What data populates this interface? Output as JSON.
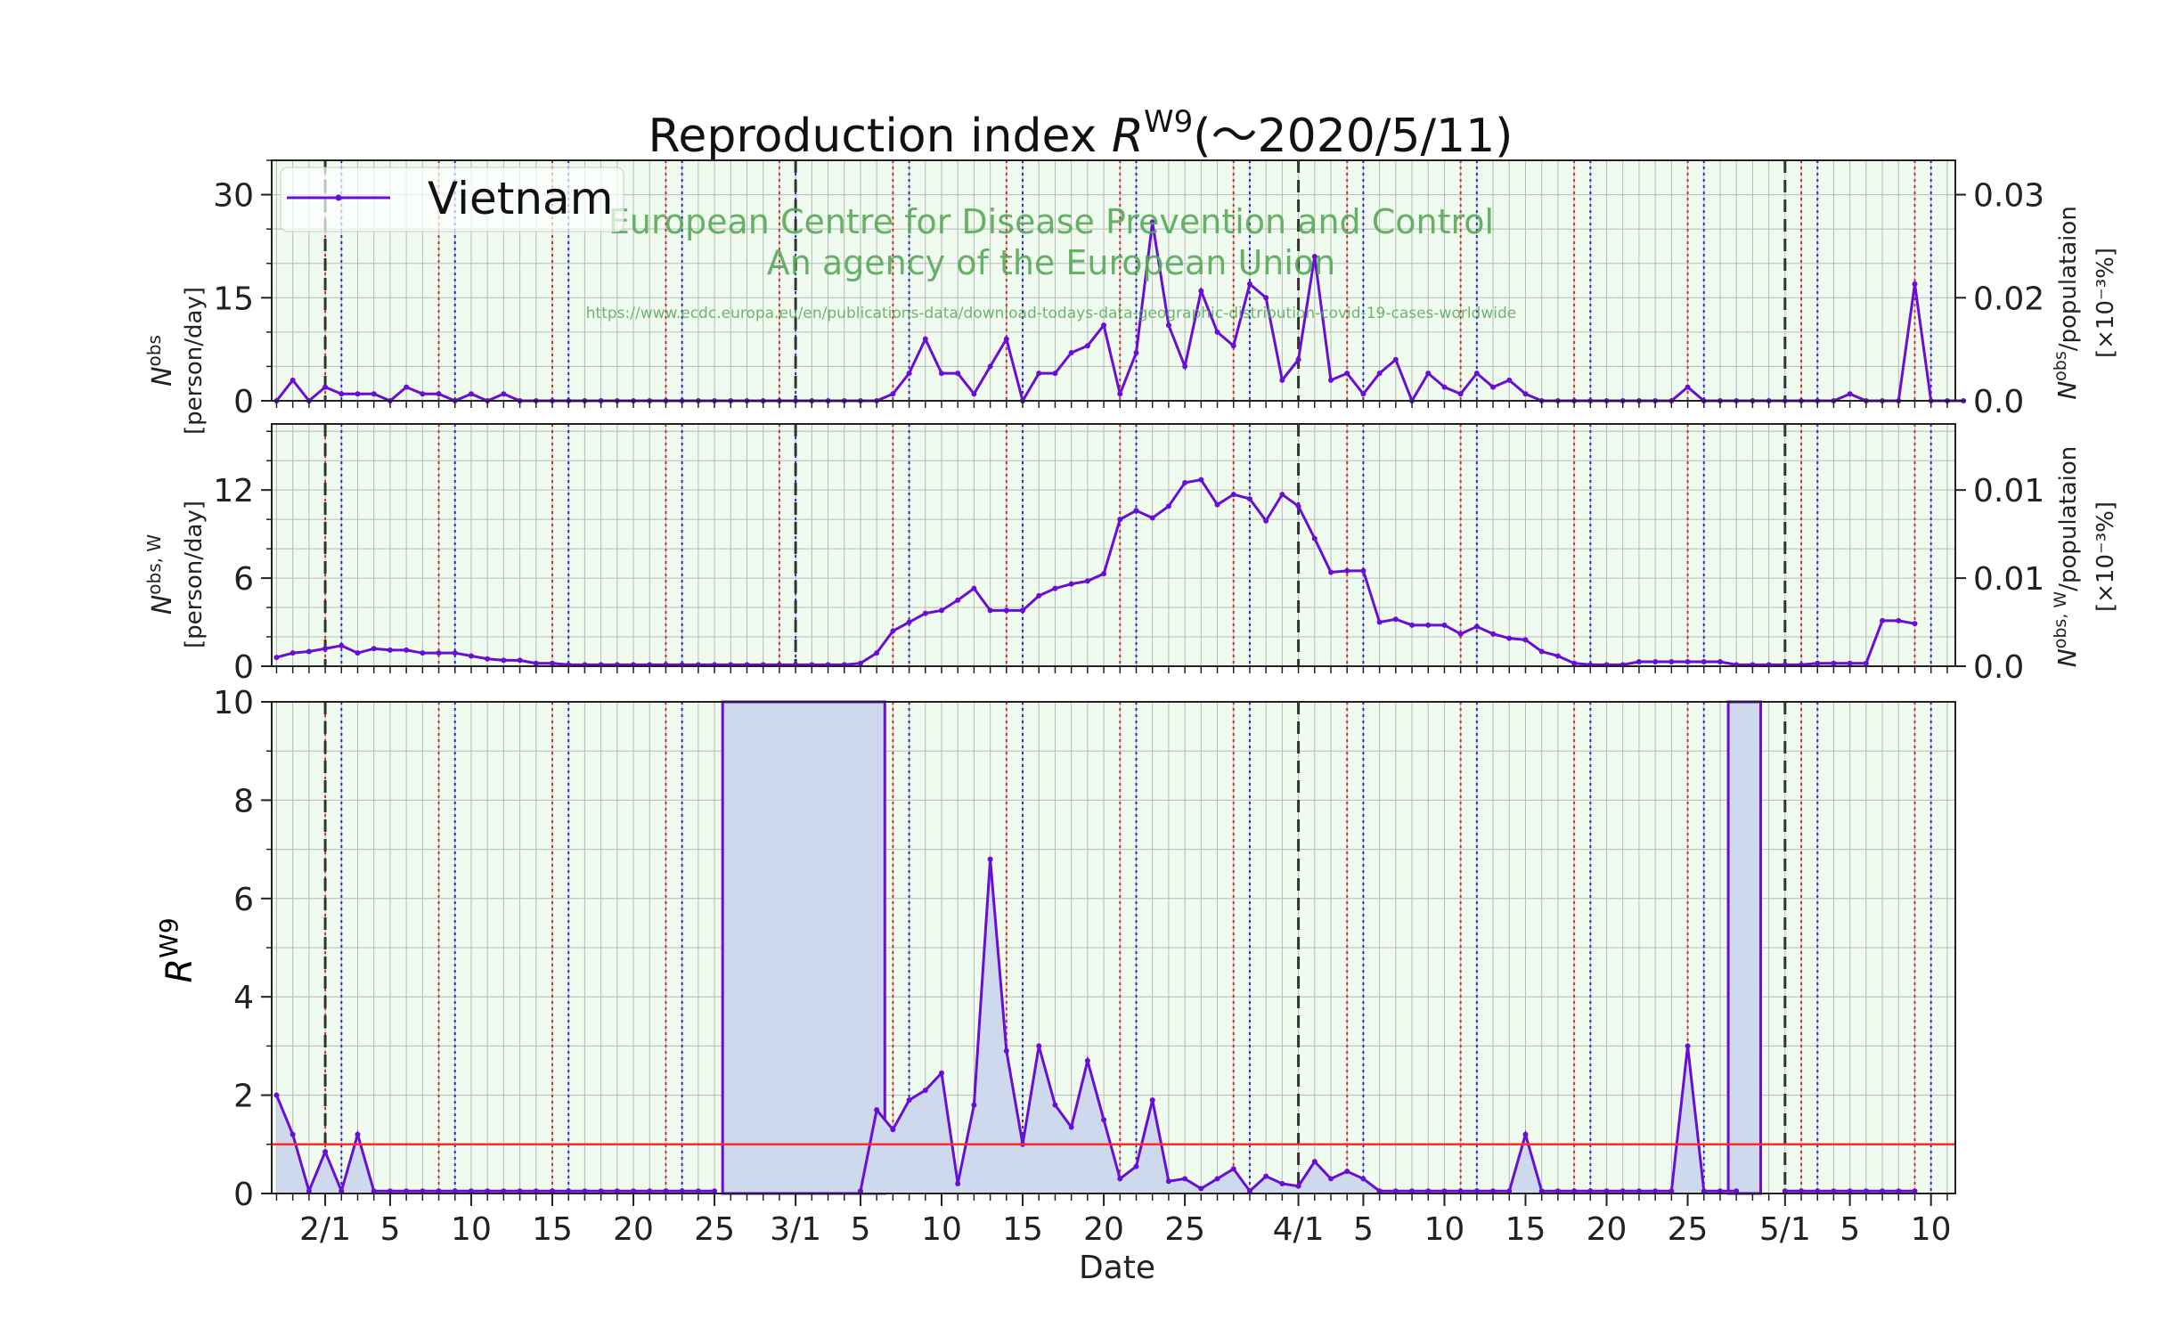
{
  "title": {
    "main": "Reproduction index ",
    "var": "R",
    "sup": "W9",
    "tail": "(～2020/5/11)"
  },
  "watermark": {
    "line1": "European Centre for Disease Prevention and Control",
    "line2": "An agency of the European Union",
    "url": "https://www.ecdc.europa.eu/en/publications-data/download-todays-data-geographic-distribution-covid-19-cases-worldwide"
  },
  "legend": {
    "label": "Vietnam"
  },
  "axes": {
    "top": {
      "ylabel_var": "N",
      "ylabel_sup": "obs",
      "ylabel_unit": "[person/day]",
      "y2label_var": "N",
      "y2label_sup": "obs",
      "y2label_rest": "/populataion",
      "y2label_unit": "[×10⁻³%]"
    },
    "mid": {
      "ylabel_var": "N",
      "ylabel_sup": "obs, W",
      "ylabel_unit": "[person/day]",
      "y2label_var": "N",
      "y2label_sup": "obs, W",
      "y2label_rest": "/populataion",
      "y2label_unit": "[×10⁻³%]"
    },
    "bot": {
      "ylabel_var": "R",
      "ylabel_sup": "W9",
      "xlabel": "Date"
    }
  },
  "colors": {
    "series": "#6a0dd6",
    "background": "#eefbee",
    "fill": "#cfd9ee",
    "threshold": "#ff2a2a",
    "sunday_line": "#2b2bd6",
    "saturday_line": "#d62b2b",
    "month_line": "#333333"
  },
  "chart_data": [
    {
      "type": "line",
      "name": "daily new cases",
      "x_start": "2020-01-29",
      "x_end": "2020-05-11",
      "ylim": [
        0,
        35
      ],
      "y_ticks": [
        "0",
        "15",
        "30"
      ],
      "y2_ticks": [
        "0.0",
        "0.02",
        "0.03"
      ],
      "series": [
        {
          "name": "Vietnam",
          "values": [
            0,
            3,
            0,
            2,
            1,
            1,
            1,
            0,
            2,
            1,
            1,
            0,
            1,
            0,
            1,
            0,
            0,
            0,
            0,
            0,
            0,
            0,
            0,
            0,
            0,
            0,
            0,
            0,
            0,
            0,
            0,
            0,
            0,
            0,
            0,
            0,
            0,
            0,
            1,
            4,
            9,
            4,
            4,
            1,
            5,
            9,
            0,
            4,
            4,
            7,
            8,
            11,
            1,
            7,
            26,
            11,
            5,
            16,
            10,
            8,
            17,
            15,
            3,
            6,
            21,
            3,
            4,
            1,
            4,
            6,
            0,
            4,
            2,
            1,
            4,
            2,
            3,
            1,
            0,
            0,
            0,
            0,
            0,
            0,
            0,
            0,
            0,
            2,
            0,
            0,
            0,
            0,
            0,
            0,
            0,
            0,
            0,
            1,
            0,
            0,
            0,
            17,
            0,
            0,
            0
          ]
        }
      ]
    },
    {
      "type": "line",
      "name": "weekly average",
      "ylim": [
        0,
        16.5
      ],
      "y_ticks": [
        "0",
        "6",
        "12"
      ],
      "y2_ticks": [
        "0.0",
        "0.01",
        "0.01"
      ],
      "series": [
        {
          "name": "Vietnam",
          "values": [
            0.6,
            0.9,
            1.0,
            1.2,
            1.4,
            0.9,
            1.2,
            1.1,
            1.1,
            0.9,
            0.9,
            0.9,
            0.7,
            0.5,
            0.4,
            0.4,
            0.2,
            0.2,
            0.1,
            0.1,
            0.1,
            0.1,
            0.1,
            0.1,
            0.1,
            0.1,
            0.1,
            0.1,
            0.1,
            0.1,
            0.1,
            0.1,
            0.1,
            0.1,
            0.1,
            0.1,
            0.2,
            0.9,
            2.4,
            3.0,
            3.6,
            3.8,
            4.5,
            5.3,
            3.8,
            3.8,
            3.8,
            4.8,
            5.3,
            5.6,
            5.8,
            6.3,
            10.0,
            10.6,
            10.1,
            10.9,
            12.5,
            12.7,
            11.0,
            11.7,
            11.4,
            9.9,
            11.7,
            10.9,
            8.7,
            6.4,
            6.5,
            6.5,
            3.0,
            3.2,
            2.8,
            2.8,
            2.8,
            2.2,
            2.7,
            2.2,
            1.9,
            1.8,
            1.0,
            0.7,
            0.2,
            0.1,
            0.1,
            0.1,
            0.3,
            0.3,
            0.3,
            0.3,
            0.3,
            0.3,
            0.1,
            0.1,
            0.1,
            0.1,
            0.1,
            0.2,
            0.2,
            0.2,
            0.2,
            3.1,
            3.1,
            2.9
          ]
        }
      ]
    },
    {
      "type": "area",
      "name": "reproduction index",
      "ylim": [
        0,
        10
      ],
      "y_ticks": [
        "0",
        "2",
        "4",
        "6",
        "8",
        "10"
      ],
      "threshold": 1,
      "series": [
        {
          "name": "Vietnam",
          "values": [
            2.0,
            1.2,
            0.05,
            0.85,
            0.05,
            1.2,
            0.05,
            0.05,
            0.05,
            0.05,
            0.05,
            0.05,
            0.05,
            0.05,
            0.05,
            0.05,
            0.05,
            0.05,
            0.05,
            0.05,
            0.05,
            0.05,
            0.05,
            0.05,
            0.05,
            0.05,
            0.05,
            0.05,
            null,
            null,
            null,
            null,
            null,
            null,
            null,
            null,
            0.05,
            1.7,
            1.3,
            1.9,
            2.1,
            2.45,
            0.2,
            1.8,
            6.8,
            2.9,
            1.0,
            3.0,
            1.8,
            1.35,
            2.7,
            1.5,
            0.3,
            0.55,
            1.9,
            0.25,
            0.3,
            0.1,
            0.3,
            0.5,
            0.05,
            0.35,
            0.2,
            0.15,
            0.65,
            0.3,
            0.45,
            0.3,
            0.05,
            0.05,
            0.05,
            0.05,
            0.05,
            0.05,
            0.05,
            0.05,
            0.05,
            1.2,
            0.05,
            0.05,
            0.05,
            0.05,
            0.05,
            0.05,
            0.05,
            0.05,
            0.05,
            3.0,
            0.05,
            0.05,
            0.05,
            null,
            null,
            0.05,
            0.05,
            0.05,
            0.05,
            0.05,
            0.05,
            0.05,
            0.05,
            0.05
          ]
        }
      ],
      "undefined_spans": [
        [
          "2020-02-26",
          "2020-03-06"
        ],
        [
          "2020-04-28",
          "2020-04-29"
        ]
      ]
    }
  ],
  "x_ticks": [
    {
      "date": "2020-02-01",
      "label": "2/1"
    },
    {
      "date": "2020-02-05",
      "label": "5"
    },
    {
      "date": "2020-02-10",
      "label": "10"
    },
    {
      "date": "2020-02-15",
      "label": "15"
    },
    {
      "date": "2020-02-20",
      "label": "20"
    },
    {
      "date": "2020-02-25",
      "label": "25"
    },
    {
      "date": "2020-03-01",
      "label": "3/1"
    },
    {
      "date": "2020-03-05",
      "label": "5"
    },
    {
      "date": "2020-03-10",
      "label": "10"
    },
    {
      "date": "2020-03-15",
      "label": "15"
    },
    {
      "date": "2020-03-20",
      "label": "20"
    },
    {
      "date": "2020-03-25",
      "label": "25"
    },
    {
      "date": "2020-04-01",
      "label": "4/1"
    },
    {
      "date": "2020-04-05",
      "label": "5"
    },
    {
      "date": "2020-04-10",
      "label": "10"
    },
    {
      "date": "2020-04-15",
      "label": "15"
    },
    {
      "date": "2020-04-20",
      "label": "20"
    },
    {
      "date": "2020-04-25",
      "label": "25"
    },
    {
      "date": "2020-05-01",
      "label": "5/1"
    },
    {
      "date": "2020-05-05",
      "label": "5"
    },
    {
      "date": "2020-05-10",
      "label": "10"
    }
  ]
}
